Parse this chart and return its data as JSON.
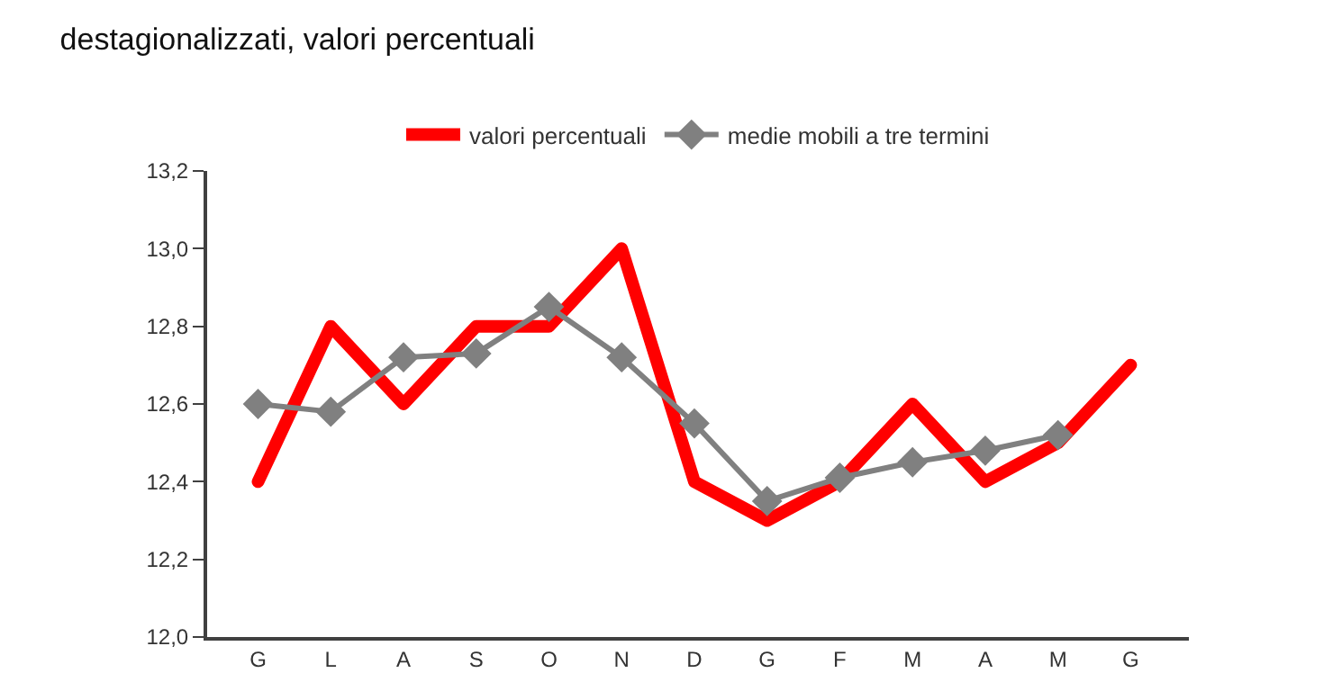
{
  "chart_data": {
    "type": "line",
    "title": "destagionalizzati, valori percentuali",
    "categories": [
      "G",
      "L",
      "A",
      "S",
      "O",
      "N",
      "D",
      "G",
      "F",
      "M",
      "A",
      "M",
      "G"
    ],
    "series": [
      {
        "name": "valori percentuali",
        "color": "#ff0000",
        "marker": "none",
        "values": [
          12.4,
          12.8,
          12.6,
          12.8,
          12.8,
          13.0,
          12.4,
          12.3,
          12.4,
          12.6,
          12.4,
          12.5,
          12.7
        ]
      },
      {
        "name": "medie mobili a tre termini",
        "color": "#808080",
        "marker": "diamond",
        "values": [
          12.6,
          12.58,
          12.72,
          12.73,
          12.85,
          12.72,
          12.55,
          12.35,
          12.41,
          12.45,
          12.48,
          12.52,
          null
        ]
      }
    ],
    "ylim": [
      12.0,
      13.2
    ],
    "yticks": [
      {
        "value": 12.0,
        "label": "12,0"
      },
      {
        "value": 12.2,
        "label": "12,2"
      },
      {
        "value": 12.4,
        "label": "12,4"
      },
      {
        "value": 12.6,
        "label": "12,6"
      },
      {
        "value": 12.8,
        "label": "12,8"
      },
      {
        "value": 13.0,
        "label": "13,0"
      },
      {
        "value": 13.2,
        "label": "13,2"
      }
    ],
    "grid": false,
    "legend": "top"
  }
}
